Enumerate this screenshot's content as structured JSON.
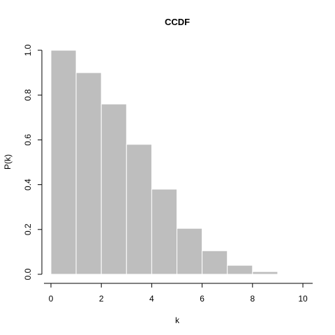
{
  "chart_data": {
    "type": "bar",
    "title": "CCDF",
    "xlabel": "k",
    "ylabel": "P(k)",
    "xlim": [
      0,
      10
    ],
    "ylim": [
      0,
      1
    ],
    "x_ticks": [
      "0",
      "2",
      "4",
      "6",
      "8",
      "10"
    ],
    "y_ticks": [
      "0.0",
      "0.2",
      "0.4",
      "0.6",
      "0.8",
      "1.0"
    ],
    "bins": [
      {
        "from": 0,
        "to": 1,
        "value": 1.0
      },
      {
        "from": 1,
        "to": 2,
        "value": 0.9
      },
      {
        "from": 2,
        "to": 3,
        "value": 0.76
      },
      {
        "from": 3,
        "to": 4,
        "value": 0.58
      },
      {
        "from": 4,
        "to": 5,
        "value": 0.38
      },
      {
        "from": 5,
        "to": 6,
        "value": 0.205
      },
      {
        "from": 6,
        "to": 7,
        "value": 0.105
      },
      {
        "from": 7,
        "to": 8,
        "value": 0.04
      },
      {
        "from": 8,
        "to": 9,
        "value": 0.012
      }
    ],
    "bar_color": "#bebebe",
    "bar_edge_color": "#ffffff",
    "grid": false,
    "legend": "none"
  }
}
